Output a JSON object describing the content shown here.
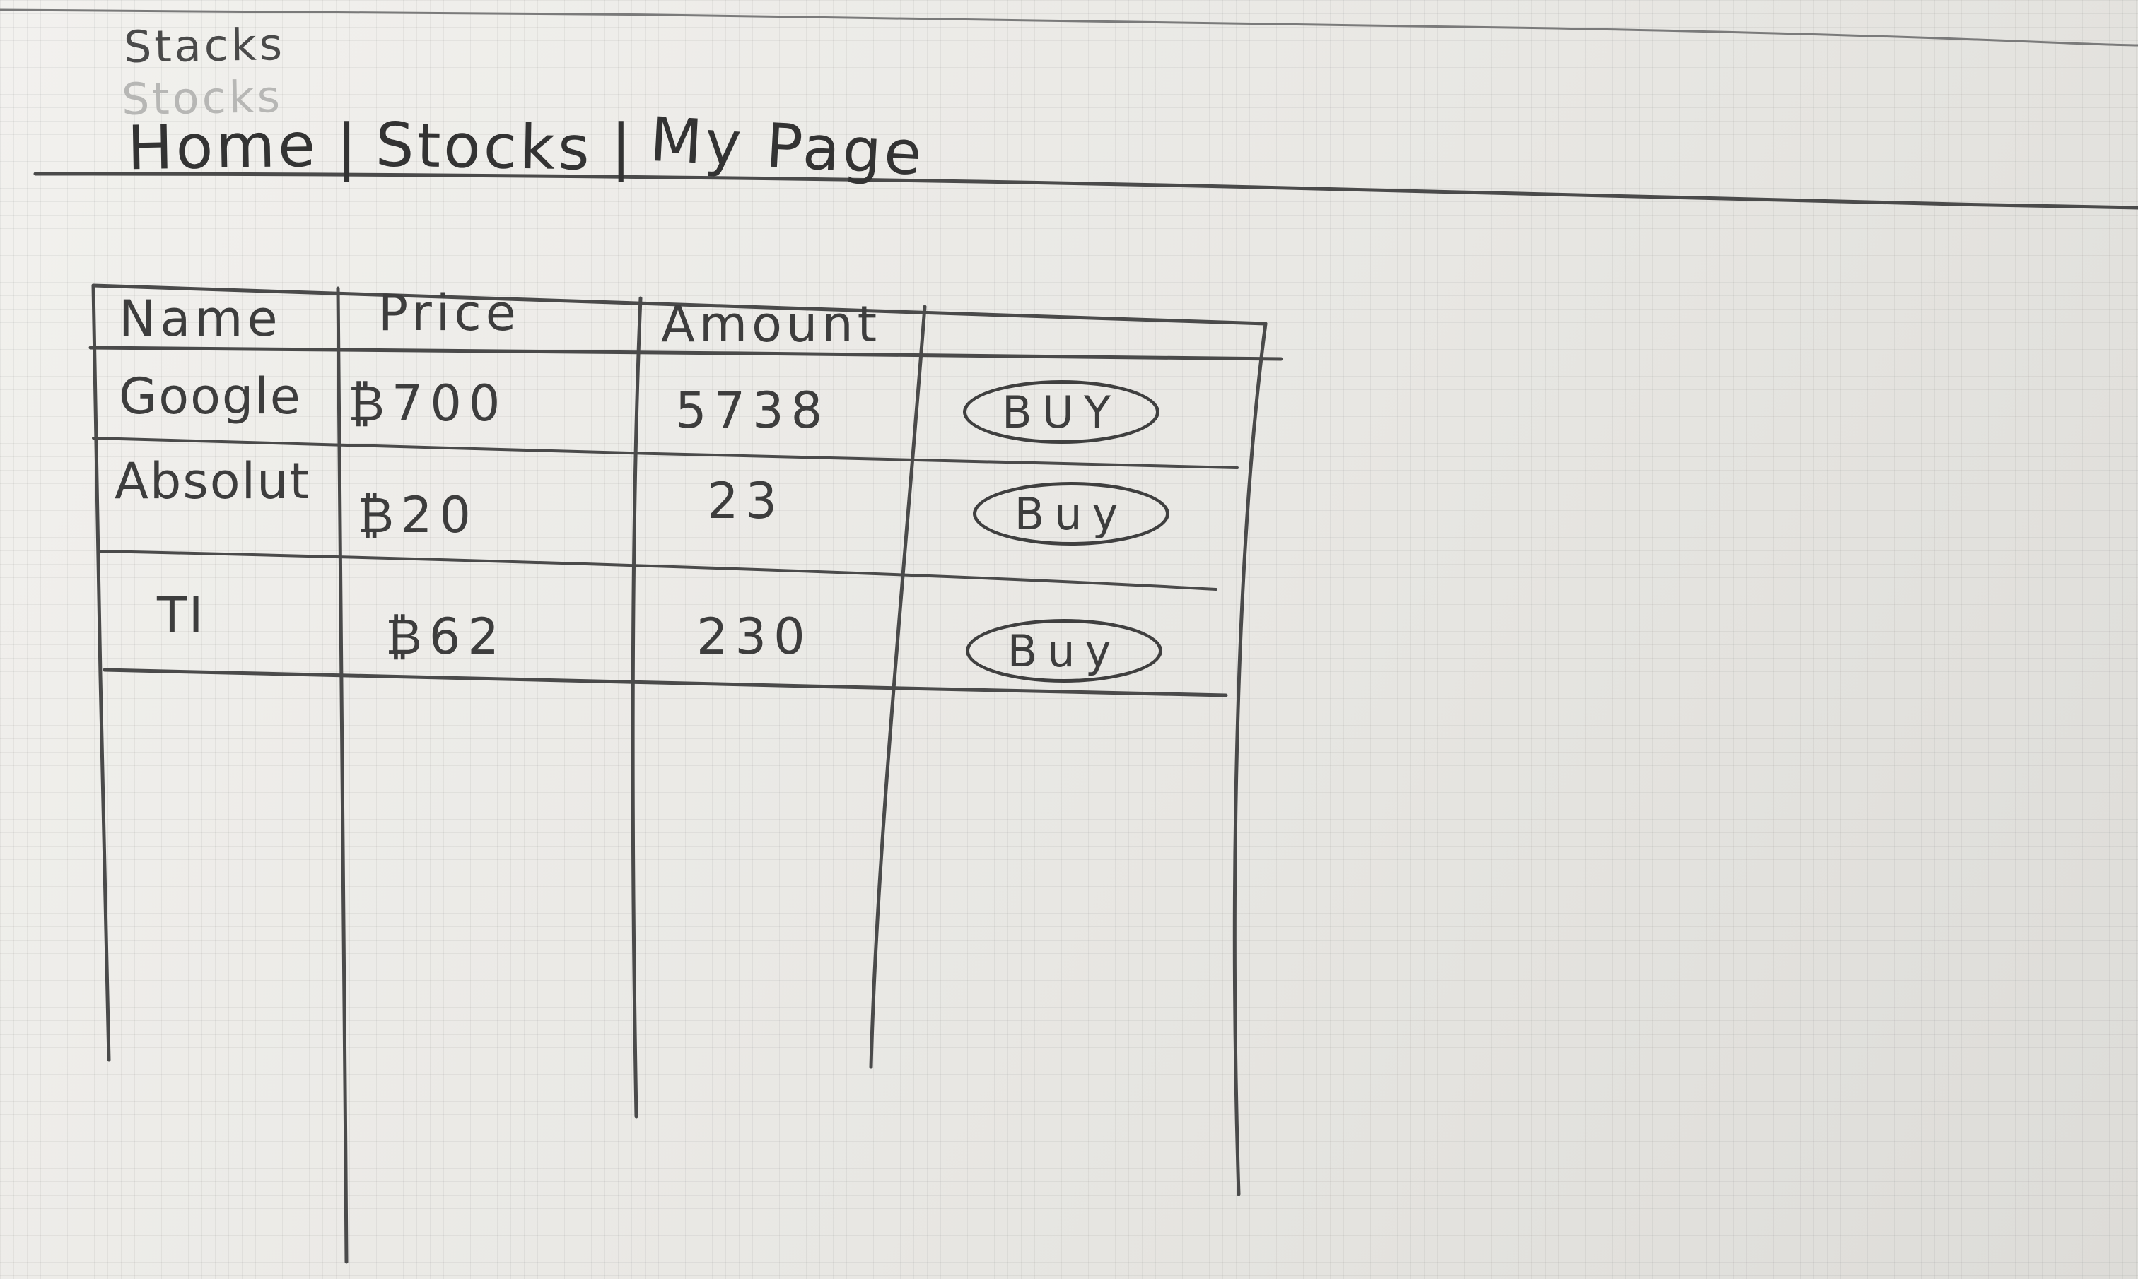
{
  "app": {
    "title": "Stacks",
    "title_ghost": "Stocks"
  },
  "nav": {
    "items": [
      {
        "label": "Home"
      },
      {
        "label": "Stocks"
      },
      {
        "label": "My Page"
      }
    ],
    "separator": "|"
  },
  "table": {
    "columns": [
      "Name",
      "Price",
      "Amount",
      ""
    ],
    "rows": [
      {
        "name": "Google",
        "price": "₿700",
        "amount": "5738",
        "action": "BUY"
      },
      {
        "name": "Absolut",
        "price": "₿20",
        "amount": "23",
        "action": "Buy"
      },
      {
        "name": "TI",
        "price": "₿62",
        "amount": "230",
        "action": "Buy"
      }
    ]
  }
}
